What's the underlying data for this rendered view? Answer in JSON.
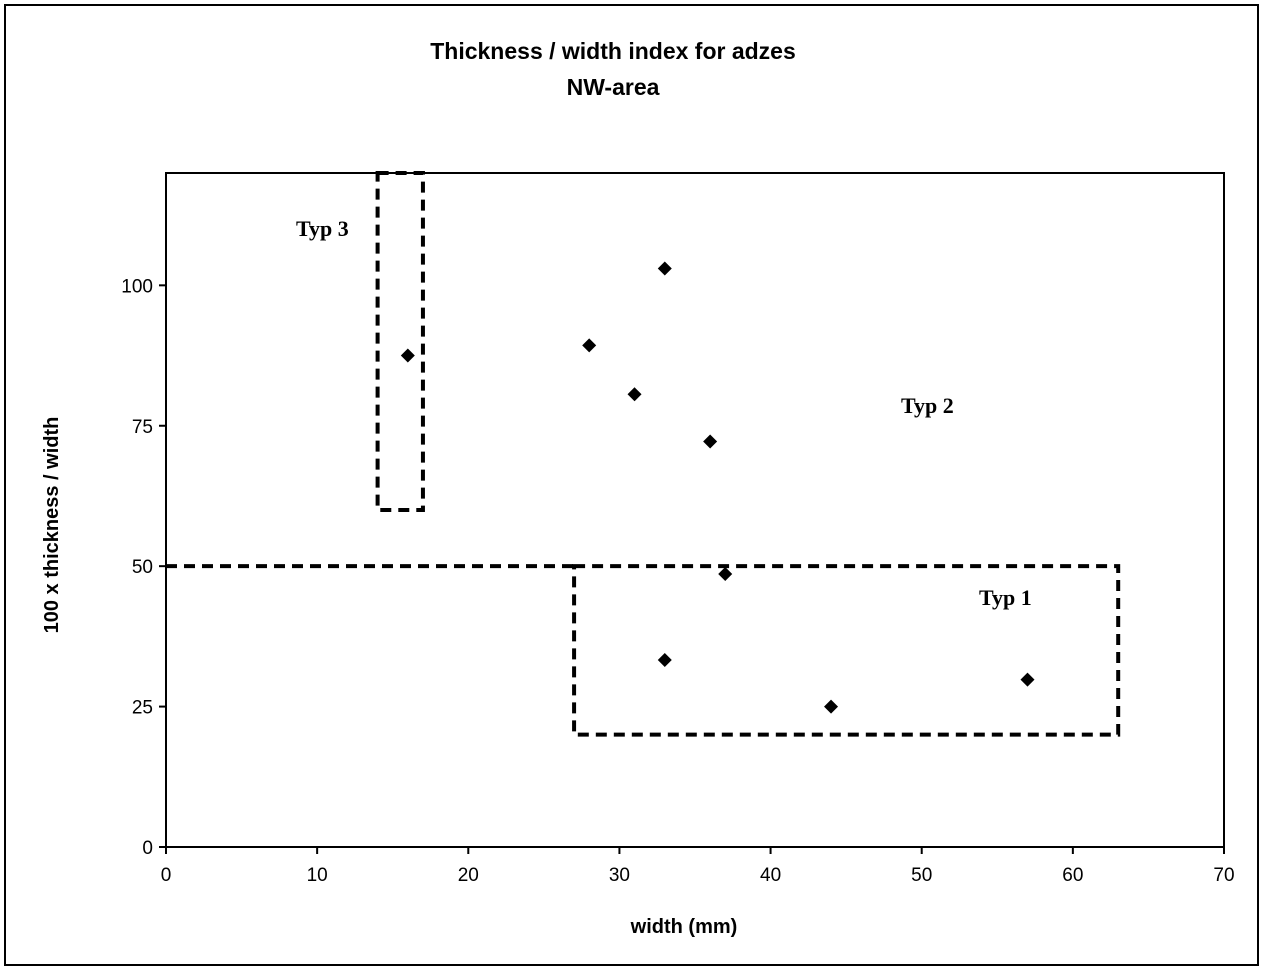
{
  "chart_data": {
    "type": "scatter",
    "title": "Thickness / width index for adzes",
    "subtitle": "NW-area",
    "xlabel": "width (mm)",
    "ylabel": "100 x thickness / width",
    "xlim": [
      0,
      70
    ],
    "ylim": [
      0,
      120
    ],
    "xticks": [
      0,
      10,
      20,
      30,
      40,
      50,
      60,
      70
    ],
    "yticks": [
      0,
      25,
      50,
      75,
      100
    ],
    "grid": false,
    "marker": "diamond",
    "marker_color": "#000000",
    "points": [
      {
        "x": 16,
        "y": 87.5
      },
      {
        "x": 28,
        "y": 89.3
      },
      {
        "x": 33,
        "y": 103
      },
      {
        "x": 31,
        "y": 80.6
      },
      {
        "x": 36,
        "y": 72.2
      },
      {
        "x": 37,
        "y": 48.6
      },
      {
        "x": 33,
        "y": 33.3
      },
      {
        "x": 44,
        "y": 25
      },
      {
        "x": 57,
        "y": 29.8
      }
    ],
    "groups": [
      {
        "label": "Typ 3",
        "box": {
          "x0": 14,
          "x1": 17,
          "y0": 60,
          "y1": 120
        }
      },
      {
        "label": "Typ 2"
      },
      {
        "label": "Typ 1",
        "box": {
          "x0": 27,
          "x1": 63,
          "y0": 20,
          "y1": 50
        }
      }
    ],
    "divider": {
      "y": 50,
      "x0": 0,
      "x1": 27
    }
  }
}
